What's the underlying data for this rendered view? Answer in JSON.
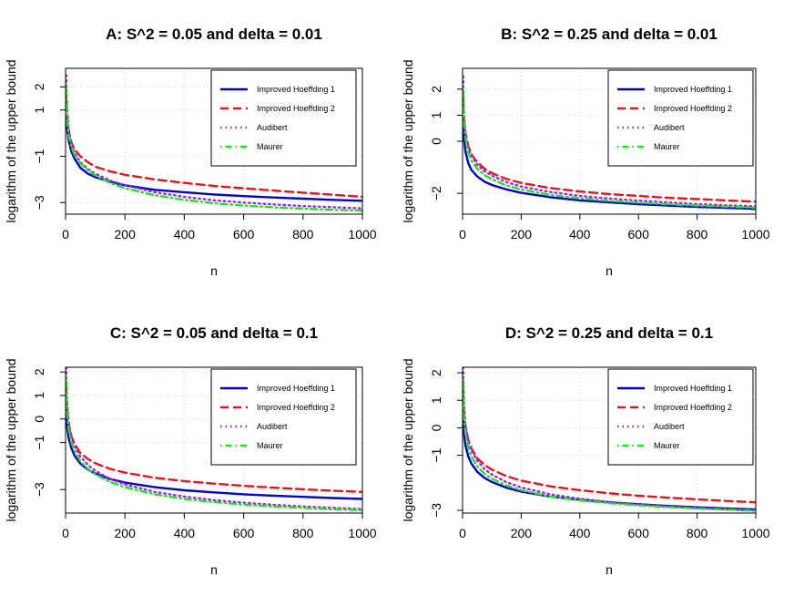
{
  "figure": {
    "x_label": "n",
    "y_label": "logarithm of the upper bound"
  },
  "series_styles": [
    {
      "name": "Improved Hoeffding 1",
      "color": "#0000cd",
      "dash": "solid"
    },
    {
      "name": "Improved Hoeffding 2",
      "color": "#e8141d",
      "dash": "dashed"
    },
    {
      "name": "Audibert",
      "color": "#a020f0",
      "dash": "dotted"
    },
    {
      "name": "Maurer",
      "color": "#22e022",
      "dash": "dotdash"
    }
  ],
  "chart_data": [
    {
      "type": "line",
      "title": "A: S^2 = 0.05 and delta = 0.01",
      "xlabel": "n",
      "ylabel": "logarithm of the upper bound",
      "xlim": [
        0,
        1000
      ],
      "ylim": [
        -3.5,
        2.8
      ],
      "xticks": [
        0,
        200,
        400,
        600,
        800,
        1000
      ],
      "yticks": [
        2,
        1,
        -1,
        -3
      ],
      "legend": "top-right",
      "x": [
        2,
        5,
        10,
        20,
        30,
        50,
        75,
        100,
        150,
        200,
        300,
        400,
        500,
        600,
        700,
        800,
        900,
        1000
      ],
      "series": [
        {
          "name": "Improved Hoeffding 1",
          "values": [
            0.8,
            0.2,
            -0.3,
            -0.8,
            -1.1,
            -1.5,
            -1.75,
            -1.9,
            -2.1,
            -2.25,
            -2.45,
            -2.55,
            -2.65,
            -2.72,
            -2.78,
            -2.83,
            -2.88,
            -2.92
          ]
        },
        {
          "name": "Improved Hoeffding 2",
          "values": [
            1.9,
            0.8,
            0.1,
            -0.4,
            -0.7,
            -1.0,
            -1.25,
            -1.45,
            -1.65,
            -1.8,
            -2.0,
            -2.15,
            -2.28,
            -2.38,
            -2.48,
            -2.57,
            -2.66,
            -2.75
          ]
        },
        {
          "name": "Audibert",
          "values": [
            2.5,
            1.1,
            0.2,
            -0.5,
            -0.85,
            -1.25,
            -1.55,
            -1.75,
            -2.05,
            -2.25,
            -2.55,
            -2.75,
            -2.9,
            -3.0,
            -3.08,
            -3.15,
            -3.2,
            -3.25
          ]
        },
        {
          "name": "Maurer",
          "values": [
            2.1,
            0.6,
            -0.1,
            -0.6,
            -0.95,
            -1.3,
            -1.6,
            -1.82,
            -2.15,
            -2.38,
            -2.68,
            -2.88,
            -3.03,
            -3.13,
            -3.2,
            -3.26,
            -3.31,
            -3.35
          ]
        }
      ]
    },
    {
      "type": "line",
      "title": "B: S^2 = 0.25 and delta = 0.01",
      "xlabel": "n",
      "ylabel": "logarithm of the upper bound",
      "xlim": [
        0,
        1000
      ],
      "ylim": [
        -2.8,
        2.8
      ],
      "xticks": [
        0,
        200,
        400,
        600,
        800,
        1000
      ],
      "yticks": [
        2,
        1,
        0,
        -2
      ],
      "legend": "top-right",
      "x": [
        2,
        5,
        10,
        20,
        30,
        50,
        75,
        100,
        150,
        200,
        300,
        400,
        500,
        600,
        700,
        800,
        900,
        1000
      ],
      "series": [
        {
          "name": "Improved Hoeffding 1",
          "values": [
            0.8,
            0.1,
            -0.4,
            -0.85,
            -1.1,
            -1.35,
            -1.55,
            -1.68,
            -1.85,
            -1.98,
            -2.15,
            -2.27,
            -2.35,
            -2.42,
            -2.47,
            -2.52,
            -2.56,
            -2.6
          ]
        },
        {
          "name": "Improved Hoeffding 2",
          "values": [
            1.9,
            0.8,
            0.3,
            -0.2,
            -0.5,
            -0.8,
            -1.05,
            -1.22,
            -1.45,
            -1.6,
            -1.8,
            -1.93,
            -2.03,
            -2.1,
            -2.17,
            -2.22,
            -2.27,
            -2.32
          ]
        },
        {
          "name": "Audibert",
          "values": [
            2.5,
            1.1,
            0.35,
            -0.25,
            -0.55,
            -0.9,
            -1.15,
            -1.32,
            -1.57,
            -1.74,
            -1.95,
            -2.1,
            -2.2,
            -2.28,
            -2.35,
            -2.41,
            -2.46,
            -2.5
          ]
        },
        {
          "name": "Maurer",
          "values": [
            2.1,
            0.7,
            0.1,
            -0.45,
            -0.75,
            -1.05,
            -1.3,
            -1.46,
            -1.7,
            -1.85,
            -2.06,
            -2.19,
            -2.29,
            -2.36,
            -2.42,
            -2.47,
            -2.51,
            -2.55
          ]
        }
      ]
    },
    {
      "type": "line",
      "title": "C: S^2 = 0.05 and delta = 0.1",
      "xlabel": "n",
      "ylabel": "logarithm of the upper bound",
      "xlim": [
        0,
        1000
      ],
      "ylim": [
        -4.0,
        2.2
      ],
      "xticks": [
        0,
        200,
        400,
        600,
        800,
        1000
      ],
      "yticks": [
        2,
        1,
        0,
        -1,
        -3
      ],
      "legend": "top-right",
      "x": [
        2,
        5,
        10,
        20,
        30,
        50,
        75,
        100,
        150,
        200,
        300,
        400,
        500,
        600,
        700,
        800,
        900,
        1000
      ],
      "series": [
        {
          "name": "Improved Hoeffding 1",
          "values": [
            0.4,
            -0.3,
            -0.8,
            -1.25,
            -1.55,
            -1.9,
            -2.15,
            -2.32,
            -2.55,
            -2.7,
            -2.9,
            -3.03,
            -3.12,
            -3.2,
            -3.26,
            -3.31,
            -3.36,
            -3.4
          ]
        },
        {
          "name": "Improved Hoeffding 2",
          "values": [
            1.5,
            0.5,
            -0.2,
            -0.75,
            -1.05,
            -1.45,
            -1.7,
            -1.88,
            -2.12,
            -2.28,
            -2.5,
            -2.64,
            -2.75,
            -2.84,
            -2.92,
            -2.99,
            -3.05,
            -3.1
          ]
        },
        {
          "name": "Audibert",
          "values": [
            2.2,
            0.8,
            -0.1,
            -0.8,
            -1.15,
            -1.6,
            -1.95,
            -2.2,
            -2.55,
            -2.78,
            -3.1,
            -3.3,
            -3.45,
            -3.56,
            -3.65,
            -3.72,
            -3.78,
            -3.83
          ]
        },
        {
          "name": "Maurer",
          "values": [
            1.8,
            0.3,
            -0.4,
            -1.0,
            -1.35,
            -1.8,
            -2.12,
            -2.35,
            -2.68,
            -2.9,
            -3.2,
            -3.4,
            -3.53,
            -3.64,
            -3.72,
            -3.78,
            -3.84,
            -3.88
          ]
        }
      ]
    },
    {
      "type": "line",
      "title": "D: S^2 = 0.25 and delta = 0.1",
      "xlabel": "n",
      "ylabel": "logarithm of the upper bound",
      "xlim": [
        0,
        1000
      ],
      "ylim": [
        -3.1,
        2.2
      ],
      "xticks": [
        0,
        200,
        400,
        600,
        800,
        1000
      ],
      "yticks": [
        2,
        1,
        0,
        -1,
        -3
      ],
      "legend": "top-right",
      "x": [
        2,
        5,
        10,
        20,
        30,
        50,
        75,
        100,
        150,
        200,
        300,
        400,
        500,
        600,
        700,
        800,
        900,
        1000
      ],
      "series": [
        {
          "name": "Improved Hoeffding 1",
          "values": [
            0.5,
            -0.2,
            -0.65,
            -1.05,
            -1.3,
            -1.6,
            -1.82,
            -1.97,
            -2.18,
            -2.32,
            -2.5,
            -2.62,
            -2.71,
            -2.78,
            -2.84,
            -2.89,
            -2.93,
            -2.97
          ]
        },
        {
          "name": "Improved Hoeffding 2",
          "values": [
            1.6,
            0.6,
            0.05,
            -0.45,
            -0.75,
            -1.1,
            -1.35,
            -1.52,
            -1.76,
            -1.92,
            -2.13,
            -2.27,
            -2.38,
            -2.47,
            -2.54,
            -2.6,
            -2.66,
            -2.71
          ]
        },
        {
          "name": "Audibert",
          "values": [
            2.2,
            0.9,
            0.1,
            -0.5,
            -0.82,
            -1.2,
            -1.5,
            -1.7,
            -1.98,
            -2.17,
            -2.42,
            -2.58,
            -2.7,
            -2.79,
            -2.86,
            -2.92,
            -2.97,
            -3.01
          ]
        },
        {
          "name": "Maurer",
          "values": [
            1.8,
            0.4,
            -0.2,
            -0.75,
            -1.05,
            -1.4,
            -1.67,
            -1.85,
            -2.1,
            -2.27,
            -2.5,
            -2.64,
            -2.74,
            -2.82,
            -2.88,
            -2.93,
            -2.97,
            -3.01
          ]
        }
      ]
    }
  ]
}
